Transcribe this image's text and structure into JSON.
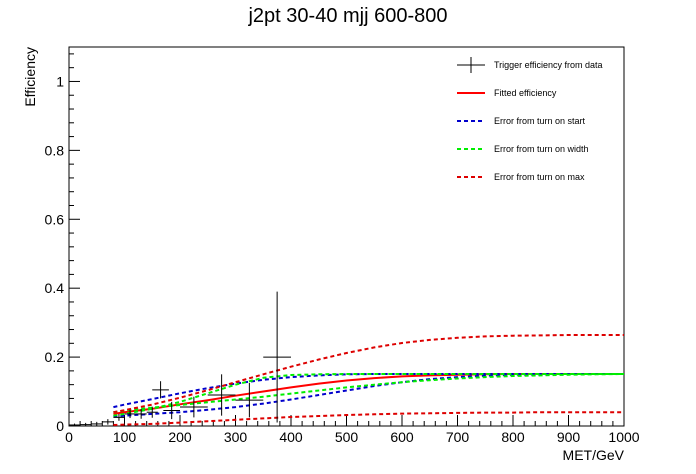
{
  "chart_data": {
    "type": "line",
    "title": "j2pt 30-40 mjj 600-800",
    "xlabel": "MET/GeV",
    "ylabel": "Efficiency",
    "xlim": [
      0,
      1000
    ],
    "ylim": [
      0,
      1.1
    ],
    "x_ticks": [
      "0",
      "100",
      "200",
      "300",
      "400",
      "500",
      "600",
      "700",
      "800",
      "900",
      "1000"
    ],
    "y_ticks": [
      "0",
      "0.2",
      "0.4",
      "0.6",
      "0.8",
      "1"
    ],
    "grid": false,
    "legend_position": "top-right",
    "data_points": {
      "name": "Trigger efficiency from data",
      "color": "#000000",
      "points": [
        {
          "x": 10,
          "y": 0.003,
          "xerr": 10,
          "yerr": 0.004
        },
        {
          "x": 30,
          "y": 0.004,
          "xerr": 10,
          "yerr": 0.005
        },
        {
          "x": 50,
          "y": 0.006,
          "xerr": 10,
          "yerr": 0.006
        },
        {
          "x": 70,
          "y": 0.012,
          "xerr": 10,
          "yerr": 0.008
        },
        {
          "x": 90,
          "y": 0.025,
          "xerr": 10,
          "yerr": 0.01
        },
        {
          "x": 110,
          "y": 0.035,
          "xerr": 10,
          "yerr": 0.012
        },
        {
          "x": 130,
          "y": 0.035,
          "xerr": 10,
          "yerr": 0.014
        },
        {
          "x": 150,
          "y": 0.04,
          "xerr": 10,
          "yerr": 0.016
        },
        {
          "x": 165,
          "y": 0.105,
          "xerr": 15,
          "yerr": 0.025
        },
        {
          "x": 185,
          "y": 0.045,
          "xerr": 15,
          "yerr": 0.025
        },
        {
          "x": 225,
          "y": 0.055,
          "xerr": 25,
          "yerr": 0.03
        },
        {
          "x": 275,
          "y": 0.09,
          "xerr": 25,
          "yerr": 0.06
        },
        {
          "x": 325,
          "y": 0.075,
          "xerr": 25,
          "yerr": 0.05
        },
        {
          "x": 375,
          "y": 0.2,
          "xerr": 25,
          "yerr": 0.19
        }
      ]
    },
    "series": [
      {
        "name": "Fitted efficiency",
        "color": "#ff0000",
        "dash": "solid",
        "x": [
          80,
          100,
          150,
          200,
          250,
          300,
          350,
          400,
          450,
          500,
          550,
          600,
          650,
          700,
          750,
          800,
          850,
          900,
          950,
          1000
        ],
        "y": [
          0.035,
          0.04,
          0.05,
          0.063,
          0.075,
          0.088,
          0.1,
          0.112,
          0.123,
          0.132,
          0.139,
          0.144,
          0.147,
          0.149,
          0.15,
          0.151,
          0.151,
          0.151,
          0.151,
          0.151
        ]
      },
      {
        "name": "Error from turn on start",
        "color": "#0000cc",
        "dash": "dashed",
        "upper_x": [
          80,
          100,
          150,
          200,
          250,
          300,
          350,
          400,
          450,
          500,
          550,
          600,
          650,
          700,
          750,
          800,
          850,
          900,
          950,
          1000
        ],
        "upper_y": [
          0.055,
          0.062,
          0.078,
          0.095,
          0.11,
          0.123,
          0.134,
          0.142,
          0.147,
          0.15,
          0.151,
          0.151,
          0.151,
          0.151,
          0.151,
          0.151,
          0.151,
          0.151,
          0.151,
          0.151
        ],
        "lower_x": [
          80,
          100,
          150,
          200,
          250,
          300,
          350,
          400,
          450,
          500,
          550,
          600,
          650,
          700,
          750,
          800,
          850,
          900,
          950,
          1000
        ],
        "lower_y": [
          0.028,
          0.03,
          0.035,
          0.04,
          0.047,
          0.055,
          0.065,
          0.077,
          0.09,
          0.103,
          0.116,
          0.127,
          0.136,
          0.142,
          0.146,
          0.149,
          0.15,
          0.151,
          0.151,
          0.151
        ]
      },
      {
        "name": "Error from turn on width",
        "color": "#00ee00",
        "dash": "dashed",
        "upper_x": [
          80,
          100,
          150,
          200,
          250,
          300,
          350,
          400,
          450,
          500,
          550,
          600,
          650,
          700,
          750,
          800,
          850,
          900,
          950,
          1000
        ],
        "upper_y": [
          0.03,
          0.035,
          0.05,
          0.07,
          0.095,
          0.12,
          0.14,
          0.148,
          0.15,
          0.151,
          0.151,
          0.151,
          0.151,
          0.151,
          0.151,
          0.151,
          0.151,
          0.151,
          0.151,
          0.151
        ],
        "lower_x": [
          80,
          100,
          150,
          200,
          250,
          300,
          350,
          400,
          450,
          500,
          550,
          600,
          650,
          700,
          750,
          800,
          850,
          900,
          950,
          1000
        ],
        "lower_y": [
          0.04,
          0.045,
          0.053,
          0.061,
          0.069,
          0.077,
          0.085,
          0.094,
          0.103,
          0.112,
          0.12,
          0.127,
          0.133,
          0.138,
          0.142,
          0.145,
          0.147,
          0.149,
          0.15,
          0.151
        ]
      },
      {
        "name": "Error from turn on max",
        "color": "#dd0000",
        "dash": "dashed",
        "upper_x": [
          80,
          100,
          150,
          200,
          250,
          300,
          350,
          400,
          450,
          500,
          550,
          600,
          650,
          700,
          750,
          800,
          850,
          900,
          950,
          1000
        ],
        "upper_y": [
          0.04,
          0.046,
          0.062,
          0.082,
          0.104,
          0.127,
          0.15,
          0.172,
          0.193,
          0.212,
          0.228,
          0.241,
          0.25,
          0.256,
          0.26,
          0.262,
          0.263,
          0.264,
          0.264,
          0.264
        ],
        "lower_x": [
          80,
          100,
          150,
          200,
          250,
          300,
          350,
          400,
          450,
          500,
          550,
          600,
          650,
          700,
          750,
          800,
          850,
          900,
          950,
          1000
        ],
        "lower_y": [
          0.003,
          0.004,
          0.006,
          0.01,
          0.014,
          0.018,
          0.022,
          0.026,
          0.029,
          0.032,
          0.034,
          0.036,
          0.037,
          0.038,
          0.039,
          0.039,
          0.04,
          0.04,
          0.04,
          0.04
        ]
      }
    ]
  }
}
